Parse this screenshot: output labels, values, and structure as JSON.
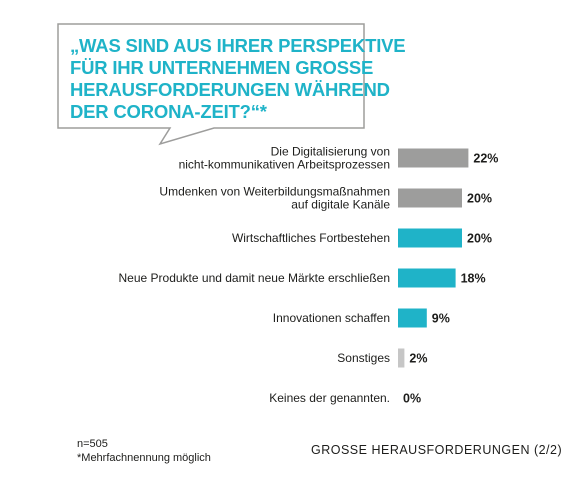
{
  "question": {
    "lines": [
      "„WAS SIND AUS IHRER PERSPEKTIVE",
      "FÜR IHR UNTERNEHMEN GROSSE",
      "HERAUSFORDERUNGEN WÄHREND",
      "DER CORONA-ZEIT?“*"
    ],
    "color": "#1fb3c8"
  },
  "chart_data": {
    "type": "bar",
    "orientation": "horizontal",
    "categories": [
      [
        "Die Digitalisierung von",
        "nicht-kommunikativen Arbeitsprozessen"
      ],
      [
        "Umdenken von Weiterbildungsmaßnahmen",
        "auf digitale Kanäle"
      ],
      [
        "Wirtschaftliches Fortbestehen"
      ],
      [
        "Neue Produkte und damit neue Märkte erschließen"
      ],
      [
        "Innovationen schaffen"
      ],
      [
        "Sonstiges"
      ],
      [
        "Keines der genannten."
      ]
    ],
    "values": [
      22,
      20,
      20,
      18,
      9,
      2,
      0
    ],
    "value_labels": [
      "22%",
      "20%",
      "20%",
      "18%",
      "9%",
      "2%",
      "0%"
    ],
    "bar_colors": [
      "#9d9d9c",
      "#9d9d9c",
      "#1fb3c8",
      "#1fb3c8",
      "#1fb3c8",
      "#c6c6c6",
      "#c6c6c6"
    ],
    "unit": "%",
    "grid": false,
    "legend": "none"
  },
  "footer": {
    "sample": "n=505",
    "note": "*Mehrfachnennung möglich",
    "title": "GROSSE HERAUSFORDERUNGEN (2/2)"
  }
}
